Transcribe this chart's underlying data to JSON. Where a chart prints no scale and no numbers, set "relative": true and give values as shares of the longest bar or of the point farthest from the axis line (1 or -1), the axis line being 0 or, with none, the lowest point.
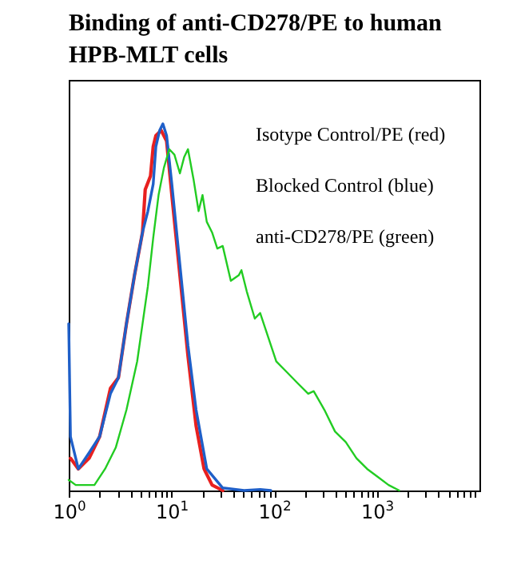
{
  "chart_data": {
    "type": "line",
    "title": "Binding of anti-CD278/PE to human HPB-MLT cells",
    "relative": true,
    "log": "x",
    "xlim": [
      1,
      10000
    ],
    "xticks": [
      {
        "value": 1,
        "label": "10$^{0}$"
      },
      {
        "value": 2,
        "label": null
      },
      {
        "value": 3,
        "label": null
      },
      {
        "value": 4,
        "label": null
      },
      {
        "value": 5,
        "label": null
      },
      {
        "value": 6,
        "label": null
      },
      {
        "value": 7,
        "label": null
      },
      {
        "value": 8,
        "label": null
      },
      {
        "value": 9,
        "label": null
      },
      {
        "value": 10,
        "label": "10$^{1}$"
      },
      {
        "value": 20,
        "label": null
      },
      {
        "value": 30,
        "label": null
      },
      {
        "value": 40,
        "label": null
      },
      {
        "value": 50,
        "label": null
      },
      {
        "value": 60,
        "label": null
      },
      {
        "value": 70,
        "label": null
      },
      {
        "value": 80,
        "label": null
      },
      {
        "value": 90,
        "label": null
      },
      {
        "value": 100,
        "label": "10$^{2}$"
      },
      {
        "value": 200,
        "label": null
      },
      {
        "value": 300,
        "label": null
      },
      {
        "value": 400,
        "label": null
      },
      {
        "value": 500,
        "label": null
      },
      {
        "value": 600,
        "label": null
      },
      {
        "value": 700,
        "label": null
      },
      {
        "value": 800,
        "label": null
      },
      {
        "value": 900,
        "label": null
      },
      {
        "value": 1000,
        "label": "10$^{3}$"
      },
      {
        "value": 2000,
        "label": null
      },
      {
        "value": 3000,
        "label": null
      },
      {
        "value": 4000,
        "label": null
      },
      {
        "value": 5000,
        "label": null
      },
      {
        "value": 6000,
        "label": null
      },
      {
        "value": 7000,
        "label": null
      },
      {
        "value": 8000,
        "label": null
      },
      {
        "value": 9000,
        "label": null
      }
    ],
    "grid": false,
    "marker": "none",
    "line_style": "solid",
    "annotations": [
      "Isotype Control/PE (red)",
      "Blocked Control (blue)",
      "anti-CD278/PE (green)"
    ],
    "series": [
      {
        "color": "#e8201f",
        "x": [
          1.04,
          1.24,
          1.58,
          2.0,
          2.55,
          3.05,
          3.65,
          4.37,
          5.23,
          5.56,
          6.26,
          6.65,
          7.06,
          7.96,
          8.98,
          10.1,
          12.1,
          14.5,
          17.4,
          20.8,
          24.9,
          31.6
        ],
        "values": [
          0.088,
          0.059,
          0.088,
          0.147,
          0.279,
          0.308,
          0.455,
          0.587,
          0.704,
          0.821,
          0.858,
          0.938,
          0.968,
          0.982,
          0.953,
          0.806,
          0.587,
          0.367,
          0.176,
          0.059,
          0.015,
          0
        ]
      },
      {
        "color": "#1f5fc8",
        "x": [
          1.0,
          1.04,
          1.24,
          1.58,
          2.0,
          2.55,
          3.05,
          3.65,
          4.37,
          5.23,
          5.9,
          6.65,
          7.06,
          7.68,
          8.26,
          8.98,
          10.1,
          12.1,
          14.5,
          17.4,
          22.1,
          31.6,
          51.1,
          73.2,
          93.0
        ],
        "values": [
          0.455,
          0.147,
          0.059,
          0.103,
          0.147,
          0.264,
          0.308,
          0.455,
          0.587,
          0.704,
          0.762,
          0.836,
          0.938,
          0.982,
          1,
          0.968,
          0.836,
          0.616,
          0.396,
          0.22,
          0.059,
          0.007,
          0,
          0.003,
          0
        ]
      },
      {
        "color": "#22cc22",
        "x": [
          1.0,
          1.17,
          1.78,
          2.26,
          2.87,
          3.65,
          4.64,
          5.9,
          6.65,
          7.5,
          8.45,
          9.53,
          10.7,
          12.1,
          13.3,
          14.5,
          16.4,
          18.4,
          20.1,
          22.1,
          24.9,
          28.0,
          31.6,
          37.9,
          45.3,
          48.1,
          54.2,
          64.9,
          73.2,
          82.6,
          105,
          133,
          169,
          215,
          243,
          309,
          392,
          499,
          634,
          805,
          1024,
          1303,
          1655
        ],
        "values": [
          0.029,
          0.015,
          0.015,
          0.059,
          0.117,
          0.22,
          0.352,
          0.557,
          0.689,
          0.806,
          0.88,
          0.931,
          0.916,
          0.865,
          0.909,
          0.931,
          0.85,
          0.762,
          0.806,
          0.733,
          0.704,
          0.66,
          0.667,
          0.572,
          0.587,
          0.601,
          0.543,
          0.469,
          0.484,
          0.44,
          0.352,
          0.323,
          0.293,
          0.264,
          0.271,
          0.22,
          0.161,
          0.132,
          0.088,
          0.059,
          0.037,
          0.015,
          0
        ]
      }
    ]
  }
}
